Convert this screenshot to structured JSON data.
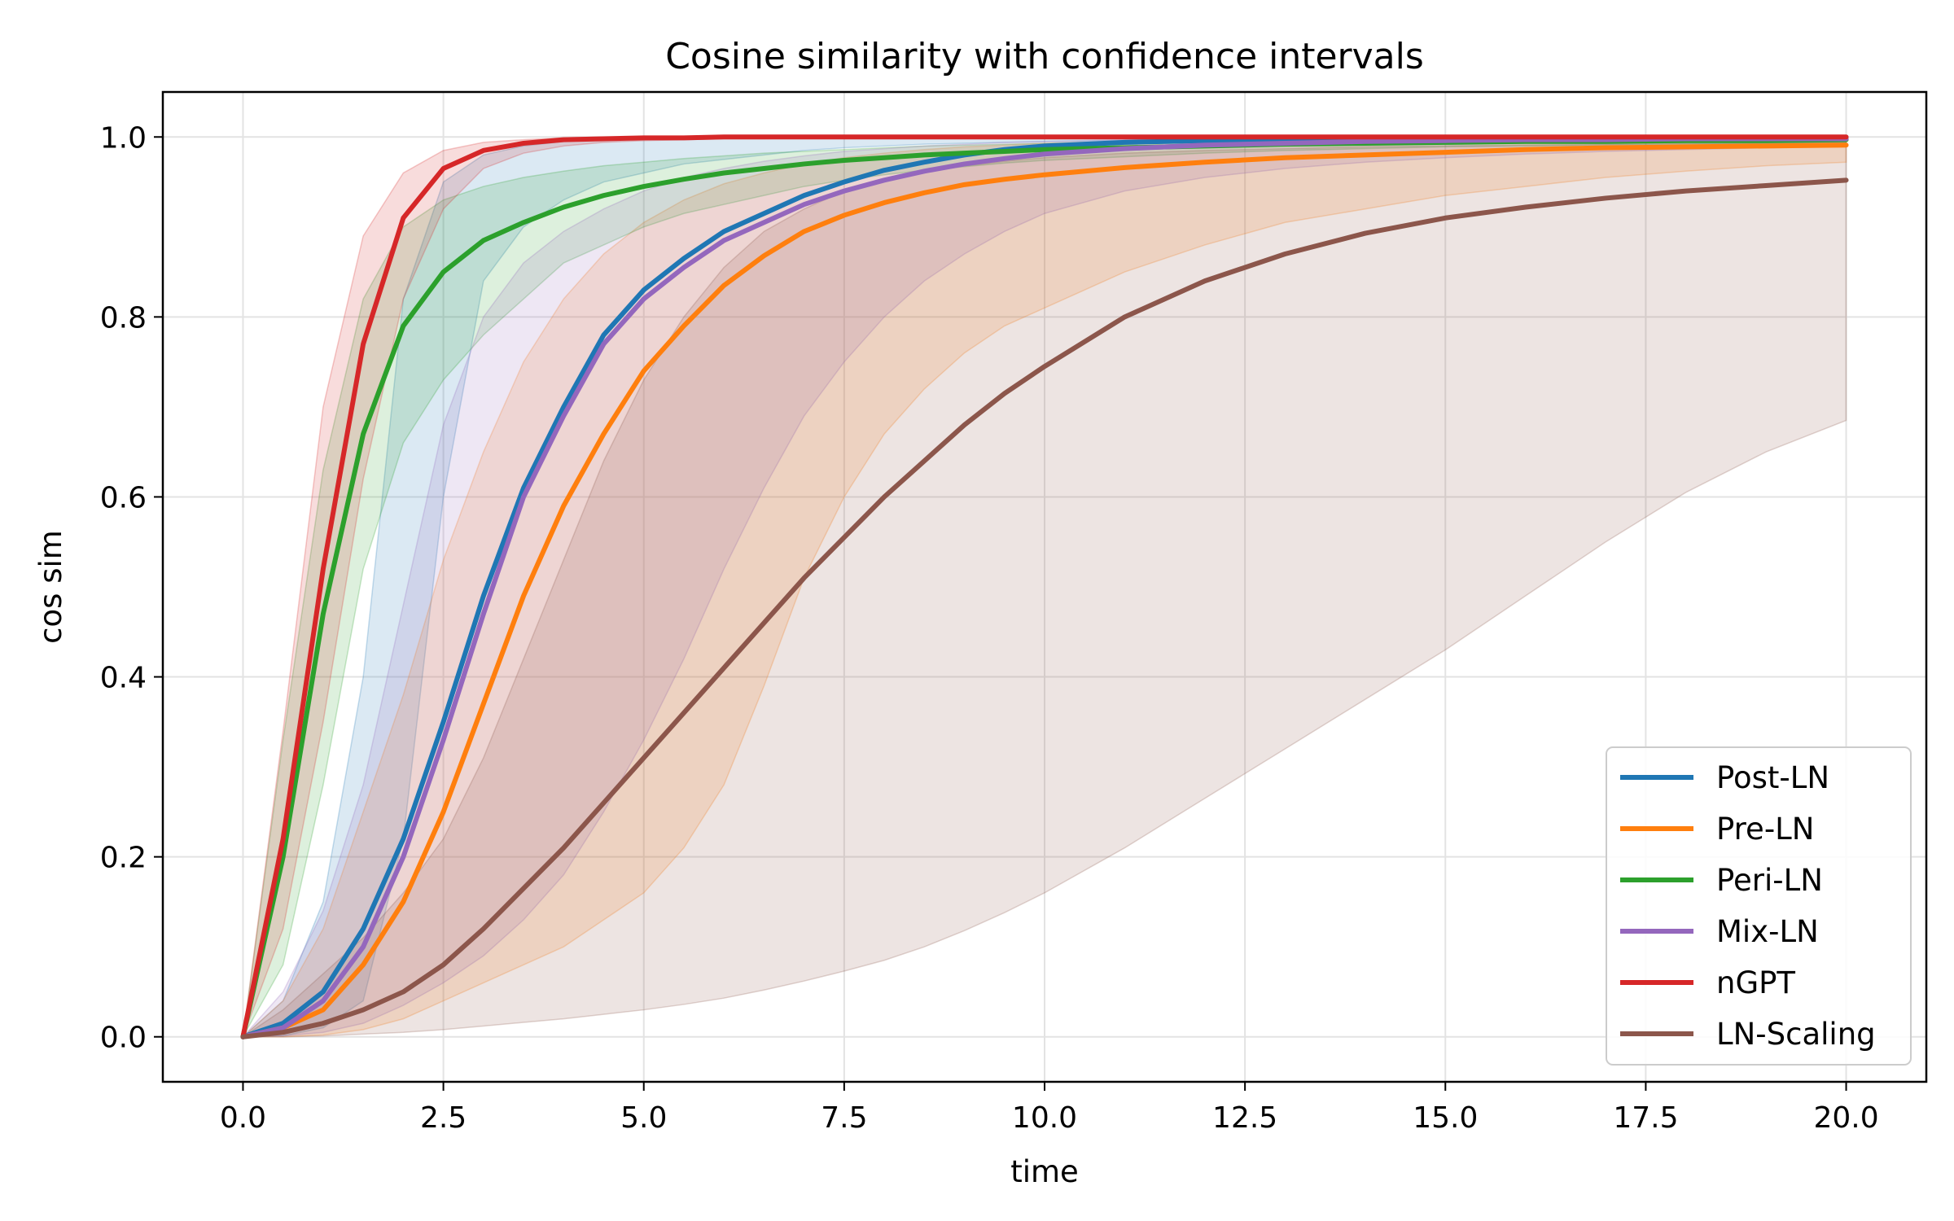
{
  "chart_data": {
    "type": "line",
    "title": "Cosine similarity with confidence intervals",
    "xlabel": "time",
    "ylabel": "cos sim",
    "xlim": [
      -1.0,
      21.0
    ],
    "ylim": [
      -0.05,
      1.05
    ],
    "xticks": [
      0.0,
      2.5,
      5.0,
      7.5,
      10.0,
      12.5,
      15.0,
      17.5,
      20.0
    ],
    "xtick_labels": [
      "0.0",
      "2.5",
      "5.0",
      "7.5",
      "10.0",
      "12.5",
      "15.0",
      "17.5",
      "20.0"
    ],
    "yticks": [
      0.0,
      0.2,
      0.4,
      0.6,
      0.8,
      1.0
    ],
    "ytick_labels": [
      "0.0",
      "0.2",
      "0.4",
      "0.6",
      "0.8",
      "1.0"
    ],
    "grid": true,
    "legend_position": "lower-right",
    "x": [
      0,
      0.5,
      1,
      1.5,
      2,
      2.5,
      3,
      3.5,
      4,
      4.5,
      5,
      5.5,
      6,
      6.5,
      7,
      7.5,
      8,
      8.5,
      9,
      9.5,
      10,
      11,
      12,
      13,
      14,
      15,
      16,
      17,
      18,
      19,
      20
    ],
    "series": [
      {
        "name": "Post-LN",
        "color": "#1f77b4",
        "values": [
          0,
          0.015,
          0.05,
          0.12,
          0.22,
          0.35,
          0.49,
          0.61,
          0.7,
          0.78,
          0.83,
          0.865,
          0.895,
          0.915,
          0.935,
          0.95,
          0.963,
          0.972,
          0.98,
          0.986,
          0.99,
          0.994,
          0.996,
          0.997,
          0.998,
          0.998,
          0.999,
          0.999,
          0.999,
          0.999,
          0.999
        ],
        "lower": [
          0,
          0.001,
          0.01,
          0.04,
          0.22,
          0.6,
          0.84,
          0.9,
          0.93,
          0.95,
          0.96,
          0.97,
          0.975,
          0.98,
          0.985,
          0.988,
          0.99,
          0.992,
          0.993,
          0.994,
          0.995,
          0.996,
          0.997,
          0.998,
          0.998,
          0.999,
          0.999,
          0.999,
          0.999,
          0.999,
          0.999
        ],
        "upper": [
          0,
          0.04,
          0.15,
          0.4,
          0.82,
          0.95,
          0.98,
          0.99,
          0.995,
          0.997,
          0.998,
          0.999,
          0.999,
          0.999,
          1.0,
          1.0,
          1.0,
          1.0,
          1.0,
          1.0,
          1.0,
          1.0,
          1.0,
          1.0,
          1.0,
          1.0,
          1.0,
          1.0,
          1.0,
          1.0,
          1.0
        ]
      },
      {
        "name": "Pre-LN",
        "color": "#ff7f0e",
        "values": [
          0,
          0.01,
          0.03,
          0.08,
          0.15,
          0.25,
          0.37,
          0.49,
          0.59,
          0.67,
          0.74,
          0.79,
          0.835,
          0.868,
          0.895,
          0.913,
          0.927,
          0.938,
          0.947,
          0.953,
          0.958,
          0.966,
          0.972,
          0.977,
          0.98,
          0.983,
          0.986,
          0.988,
          0.989,
          0.99,
          0.991
        ],
        "lower": [
          0,
          0.0,
          0.002,
          0.008,
          0.02,
          0.04,
          0.06,
          0.08,
          0.1,
          0.13,
          0.16,
          0.21,
          0.28,
          0.39,
          0.51,
          0.6,
          0.67,
          0.72,
          0.76,
          0.79,
          0.81,
          0.85,
          0.88,
          0.905,
          0.92,
          0.935,
          0.945,
          0.955,
          0.962,
          0.968,
          0.972
        ],
        "upper": [
          0,
          0.04,
          0.12,
          0.25,
          0.38,
          0.53,
          0.65,
          0.75,
          0.82,
          0.87,
          0.905,
          0.93,
          0.948,
          0.96,
          0.97,
          0.977,
          0.982,
          0.986,
          0.989,
          0.991,
          0.993,
          0.995,
          0.996,
          0.997,
          0.997,
          0.998,
          0.998,
          0.998,
          0.999,
          0.999,
          0.999
        ]
      },
      {
        "name": "Peri-LN",
        "color": "#2ca02c",
        "values": [
          0,
          0.2,
          0.47,
          0.67,
          0.79,
          0.85,
          0.885,
          0.905,
          0.922,
          0.935,
          0.945,
          0.953,
          0.96,
          0.965,
          0.97,
          0.974,
          0.977,
          0.98,
          0.982,
          0.984,
          0.986,
          0.988,
          0.99,
          0.992,
          0.993,
          0.994,
          0.995,
          0.995,
          0.996,
          0.996,
          0.997
        ],
        "lower": [
          0,
          0.08,
          0.28,
          0.52,
          0.66,
          0.73,
          0.78,
          0.82,
          0.86,
          0.88,
          0.9,
          0.915,
          0.925,
          0.935,
          0.945,
          0.952,
          0.958,
          0.963,
          0.967,
          0.971,
          0.974,
          0.978,
          0.982,
          0.985,
          0.987,
          0.989,
          0.99,
          0.991,
          0.992,
          0.993,
          0.994
        ],
        "upper": [
          0,
          0.33,
          0.63,
          0.82,
          0.9,
          0.93,
          0.945,
          0.955,
          0.962,
          0.968,
          0.972,
          0.976,
          0.979,
          0.982,
          0.984,
          0.986,
          0.988,
          0.99,
          0.991,
          0.992,
          0.993,
          0.995,
          0.996,
          0.997,
          0.997,
          0.998,
          0.998,
          0.998,
          0.999,
          0.999,
          0.999
        ]
      },
      {
        "name": "Mix-LN",
        "color": "#9467bd",
        "values": [
          0,
          0.01,
          0.04,
          0.1,
          0.2,
          0.33,
          0.47,
          0.6,
          0.69,
          0.77,
          0.82,
          0.855,
          0.885,
          0.905,
          0.925,
          0.94,
          0.952,
          0.962,
          0.97,
          0.976,
          0.981,
          0.987,
          0.991,
          0.993,
          0.995,
          0.996,
          0.997,
          0.997,
          0.998,
          0.998,
          0.998
        ],
        "lower": [
          0,
          0.001,
          0.005,
          0.015,
          0.035,
          0.06,
          0.09,
          0.13,
          0.18,
          0.25,
          0.33,
          0.42,
          0.52,
          0.61,
          0.69,
          0.75,
          0.8,
          0.84,
          0.87,
          0.895,
          0.915,
          0.94,
          0.955,
          0.965,
          0.972,
          0.977,
          0.981,
          0.984,
          0.986,
          0.988,
          0.989
        ],
        "upper": [
          0,
          0.05,
          0.14,
          0.28,
          0.48,
          0.68,
          0.8,
          0.86,
          0.895,
          0.92,
          0.94,
          0.955,
          0.965,
          0.973,
          0.979,
          0.984,
          0.987,
          0.99,
          0.992,
          0.994,
          0.995,
          0.997,
          0.998,
          0.998,
          0.999,
          0.999,
          0.999,
          0.999,
          1.0,
          1.0,
          1.0
        ]
      },
      {
        "name": "nGPT",
        "color": "#d62728",
        "values": [
          0,
          0.22,
          0.52,
          0.77,
          0.91,
          0.965,
          0.985,
          0.993,
          0.997,
          0.998,
          0.999,
          0.999,
          1.0,
          1.0,
          1.0,
          1.0,
          1.0,
          1.0,
          1.0,
          1.0,
          1.0,
          1.0,
          1.0,
          1.0,
          1.0,
          1.0,
          1.0,
          1.0,
          1.0,
          1.0,
          1.0
        ],
        "lower": [
          0,
          0.12,
          0.35,
          0.62,
          0.82,
          0.92,
          0.965,
          0.982,
          0.99,
          0.994,
          0.996,
          0.997,
          0.998,
          0.998,
          0.999,
          0.999,
          0.999,
          1.0,
          1.0,
          1.0,
          1.0,
          1.0,
          1.0,
          1.0,
          1.0,
          1.0,
          1.0,
          1.0,
          1.0,
          1.0,
          1.0
        ],
        "upper": [
          0,
          0.34,
          0.7,
          0.89,
          0.96,
          0.985,
          0.994,
          0.997,
          0.999,
          1.0,
          1.0,
          1.0,
          1.0,
          1.0,
          1.0,
          1.0,
          1.0,
          1.0,
          1.0,
          1.0,
          1.0,
          1.0,
          1.0,
          1.0,
          1.0,
          1.0,
          1.0,
          1.0,
          1.0,
          1.0,
          1.0
        ]
      },
      {
        "name": "LN-Scaling",
        "color": "#8c564b",
        "values": [
          0,
          0.005,
          0.015,
          0.03,
          0.05,
          0.08,
          0.12,
          0.165,
          0.21,
          0.26,
          0.31,
          0.36,
          0.41,
          0.46,
          0.51,
          0.555,
          0.6,
          0.64,
          0.68,
          0.715,
          0.745,
          0.8,
          0.84,
          0.87,
          0.893,
          0.91,
          0.922,
          0.932,
          0.94,
          0.946,
          0.952
        ],
        "lower": [
          0,
          0.0,
          0.001,
          0.003,
          0.005,
          0.008,
          0.012,
          0.016,
          0.02,
          0.025,
          0.03,
          0.036,
          0.043,
          0.052,
          0.062,
          0.073,
          0.085,
          0.1,
          0.118,
          0.138,
          0.16,
          0.21,
          0.265,
          0.32,
          0.375,
          0.43,
          0.49,
          0.55,
          0.605,
          0.65,
          0.685
        ],
        "upper": [
          0,
          0.03,
          0.07,
          0.11,
          0.16,
          0.22,
          0.31,
          0.42,
          0.53,
          0.64,
          0.73,
          0.8,
          0.855,
          0.895,
          0.92,
          0.94,
          0.953,
          0.962,
          0.968,
          0.973,
          0.977,
          0.982,
          0.985,
          0.987,
          0.989,
          0.99,
          0.991,
          0.992,
          0.993,
          0.993,
          0.994
        ]
      }
    ]
  }
}
